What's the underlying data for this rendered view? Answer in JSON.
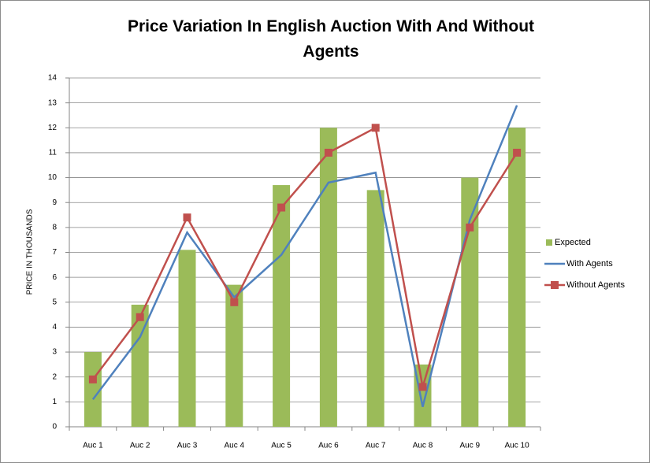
{
  "chart_data": {
    "type": "bar_line",
    "title": "Price Variation In English Auction With And Without Agents",
    "y_label": "PRICE IN THOUSANDS",
    "categories": [
      "Auc 1",
      "Auc 2",
      "Auc 3",
      "Auc 4",
      "Auc 5",
      "Auc 6",
      "Auc 7",
      "Auc 8",
      "Auc 9",
      "Auc 10"
    ],
    "series": [
      {
        "name": "Expected",
        "type": "bar",
        "color": "#9bbb59",
        "values": [
          3,
          4.9,
          7.1,
          5.7,
          9.7,
          12,
          9.5,
          2.5,
          10,
          12
        ]
      },
      {
        "name": "With Agents",
        "type": "line",
        "color": "#4f81bd",
        "values": [
          1.1,
          3.6,
          7.8,
          5.2,
          6.9,
          9.8,
          10.2,
          0.8,
          8.3,
          12.9
        ]
      },
      {
        "name": "Without Agents",
        "type": "line",
        "marker": "square",
        "color": "#c0504d",
        "values": [
          1.9,
          4.4,
          8.4,
          5.0,
          8.8,
          11,
          12,
          1.6,
          8,
          11
        ]
      }
    ],
    "ylim": [
      0,
      14
    ],
    "yticks": [
      0,
      1,
      2,
      3,
      4,
      5,
      6,
      7,
      8,
      9,
      10,
      11,
      12,
      13,
      14
    ],
    "grid": true,
    "legend": "right"
  }
}
